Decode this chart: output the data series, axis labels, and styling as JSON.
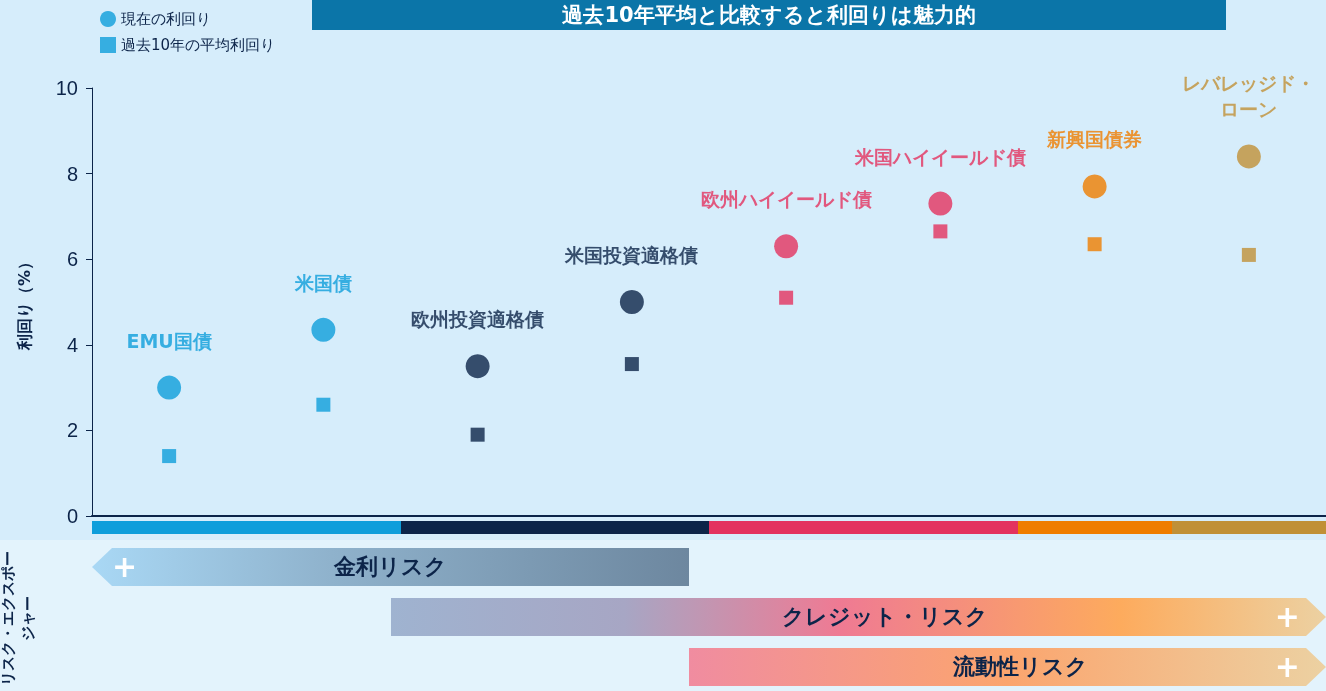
{
  "chart_data": {
    "type": "scatter",
    "title": "過去10年平均と比較すると利回りは魅力的",
    "ylabel": "利回り（%）",
    "categories": [
      "EMU国債",
      "米国債",
      "欧州投資適格債",
      "米国投資適格債",
      "欧州ハイイールド債",
      "米国ハイイールド債",
      "新興国債券",
      "レバレッジド・ローン"
    ],
    "series": [
      {
        "name": "現在の利回り",
        "color": "#0e9edb",
        "marker": "circle",
        "colors": [
          "#0e9edb",
          "#0e9edb",
          "#0c2449",
          "#0c2449",
          "#e3325f",
          "#e3325f",
          "#ef7d00",
          "#c09037"
        ],
        "values": [
          3.0,
          4.35,
          3.5,
          5.0,
          6.3,
          7.3,
          7.7,
          8.4
        ]
      },
      {
        "name": "過去10年の平均利回り",
        "color": "#0e9edb",
        "marker": "square",
        "colors": [
          "#0e9edb",
          "#0e9edb",
          "#0c2449",
          "#0c2449",
          "#e3325f",
          "#e3325f",
          "#ef7d00",
          "#c09037"
        ],
        "values": [
          1.4,
          2.6,
          1.9,
          3.55,
          5.1,
          6.65,
          6.35,
          6.1
        ]
      }
    ],
    "ylim": [
      0,
      10
    ],
    "yticks": [
      0,
      2,
      4,
      6,
      8,
      10
    ],
    "grid": false,
    "legend": "top left",
    "tick_labels": "y",
    "annotations": [
      "リスク・エクスポージャー",
      "金利リスク",
      "クレジット・リスク",
      "流動性リスク",
      "+",
      "+",
      "+"
    ]
  }
}
